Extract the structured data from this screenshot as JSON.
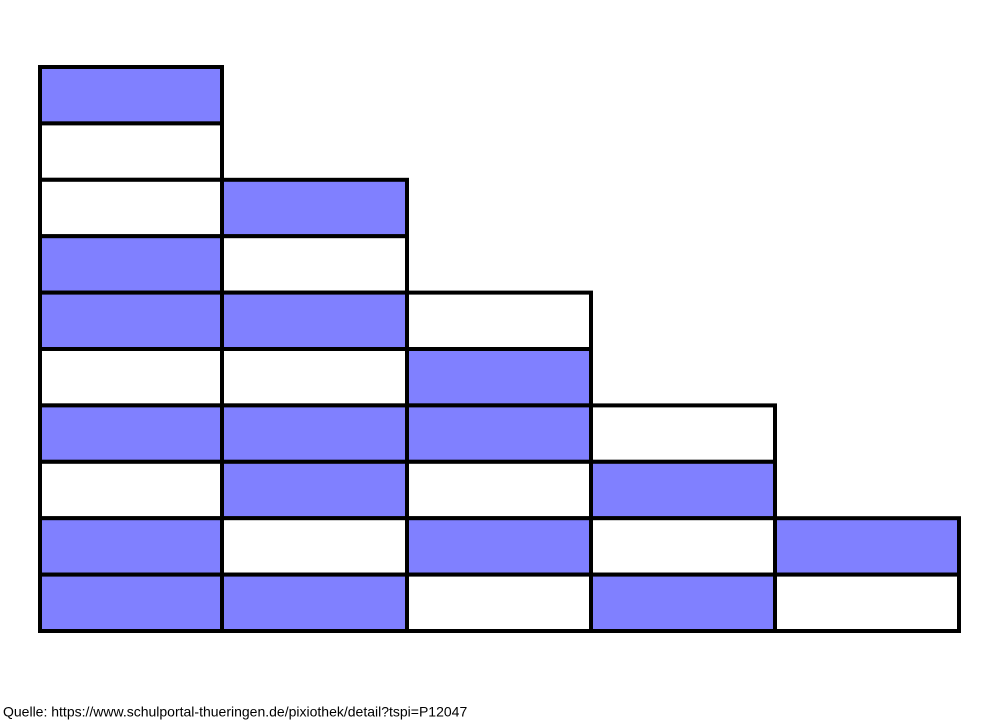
{
  "source": "Quelle: https://www.schulportal-thueringen.de/pixiothek/detail?tspi=P12047"
}
